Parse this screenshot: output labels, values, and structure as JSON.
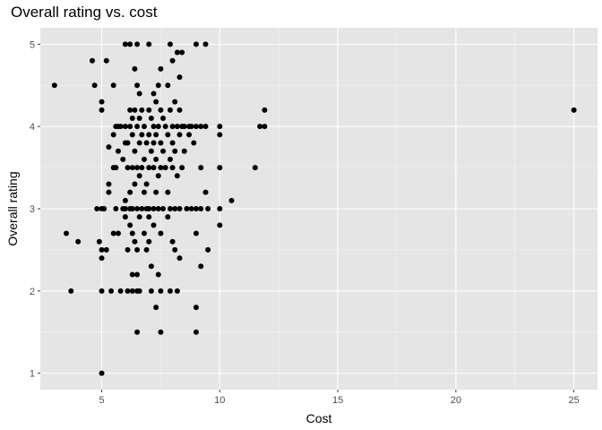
{
  "chart_data": {
    "type": "scatter",
    "title": "Overall rating vs. cost",
    "xlabel": "Cost",
    "ylabel": "Overall rating",
    "xlim": [
      2.4,
      26.0
    ],
    "ylim": [
      0.8,
      5.2
    ],
    "x_ticks": [
      5,
      10,
      15,
      20,
      25
    ],
    "y_ticks": [
      1,
      2,
      3,
      4,
      5
    ],
    "grid": true,
    "point_color": "#000000",
    "panel_background": "#e5e5e5",
    "points": [
      [
        3.0,
        4.5
      ],
      [
        3.5,
        2.7
      ],
      [
        3.7,
        2.0
      ],
      [
        4.0,
        2.6
      ],
      [
        4.6,
        4.8
      ],
      [
        4.7,
        4.5
      ],
      [
        4.8,
        3.0
      ],
      [
        4.9,
        2.6
      ],
      [
        5.0,
        4.3
      ],
      [
        5.0,
        4.2
      ],
      [
        5.0,
        3.0
      ],
      [
        5.0,
        2.5
      ],
      [
        5.0,
        2.4
      ],
      [
        5.0,
        2.0
      ],
      [
        5.0,
        1.0
      ],
      [
        5.1,
        3.0
      ],
      [
        5.2,
        4.8
      ],
      [
        5.2,
        2.5
      ],
      [
        5.3,
        3.75
      ],
      [
        5.3,
        3.3
      ],
      [
        5.3,
        3.2
      ],
      [
        5.4,
        2.0
      ],
      [
        5.5,
        4.5
      ],
      [
        5.5,
        3.9
      ],
      [
        5.5,
        3.5
      ],
      [
        5.5,
        2.7
      ],
      [
        5.6,
        4.0
      ],
      [
        5.6,
        3.5
      ],
      [
        5.6,
        3.0
      ],
      [
        5.7,
        4.0
      ],
      [
        5.7,
        3.7
      ],
      [
        5.7,
        2.7
      ],
      [
        5.8,
        4.0
      ],
      [
        5.8,
        2.0
      ],
      [
        5.9,
        3.6
      ],
      [
        5.9,
        3.0
      ],
      [
        6.0,
        5.0
      ],
      [
        6.0,
        4.0
      ],
      [
        6.0,
        3.8
      ],
      [
        6.0,
        3.1
      ],
      [
        6.0,
        3.0
      ],
      [
        6.0,
        2.9
      ],
      [
        6.1,
        3.8
      ],
      [
        6.1,
        3.5
      ],
      [
        6.1,
        2.5
      ],
      [
        6.1,
        2.0
      ],
      [
        6.2,
        5.0
      ],
      [
        6.2,
        4.2
      ],
      [
        6.2,
        4.0
      ],
      [
        6.2,
        3.2
      ],
      [
        6.2,
        3.0
      ],
      [
        6.2,
        2.8
      ],
      [
        6.3,
        4.1
      ],
      [
        6.3,
        3.9
      ],
      [
        6.3,
        3.5
      ],
      [
        6.3,
        3.0
      ],
      [
        6.3,
        2.7
      ],
      [
        6.3,
        2.2
      ],
      [
        6.3,
        2.0
      ],
      [
        6.4,
        4.7
      ],
      [
        6.4,
        4.2
      ],
      [
        6.4,
        3.7
      ],
      [
        6.4,
        3.3
      ],
      [
        6.4,
        2.6
      ],
      [
        6.5,
        5.0
      ],
      [
        6.5,
        4.5
      ],
      [
        6.5,
        4.0
      ],
      [
        6.5,
        3.5
      ],
      [
        6.5,
        3.0
      ],
      [
        6.5,
        2.5
      ],
      [
        6.5,
        2.2
      ],
      [
        6.5,
        2.0
      ],
      [
        6.5,
        1.5
      ],
      [
        6.6,
        4.4
      ],
      [
        6.6,
        4.1
      ],
      [
        6.6,
        3.8
      ],
      [
        6.6,
        3.4
      ],
      [
        6.6,
        2.9
      ],
      [
        6.6,
        2.0
      ],
      [
        6.7,
        4.2
      ],
      [
        6.7,
        3.9
      ],
      [
        6.7,
        3.5
      ],
      [
        6.7,
        3.0
      ],
      [
        6.8,
        4.0
      ],
      [
        6.8,
        3.6
      ],
      [
        6.8,
        3.2
      ],
      [
        6.8,
        2.7
      ],
      [
        6.9,
        3.8
      ],
      [
        6.9,
        3.3
      ],
      [
        6.9,
        3.0
      ],
      [
        6.9,
        2.5
      ],
      [
        7.0,
        5.0
      ],
      [
        7.0,
        4.2
      ],
      [
        7.0,
        3.9
      ],
      [
        7.0,
        3.5
      ],
      [
        7.0,
        3.0
      ],
      [
        7.0,
        2.9
      ],
      [
        7.0,
        2.6
      ],
      [
        7.1,
        4.1
      ],
      [
        7.1,
        3.7
      ],
      [
        7.1,
        2.3
      ],
      [
        7.1,
        2.0
      ],
      [
        7.2,
        4.4
      ],
      [
        7.2,
        4.0
      ],
      [
        7.2,
        3.8
      ],
      [
        7.2,
        3.5
      ],
      [
        7.2,
        3.0
      ],
      [
        7.2,
        2.8
      ],
      [
        7.3,
        4.3
      ],
      [
        7.3,
        3.9
      ],
      [
        7.3,
        3.6
      ],
      [
        7.3,
        3.2
      ],
      [
        7.3,
        1.8
      ],
      [
        7.4,
        4.5
      ],
      [
        7.4,
        4.0
      ],
      [
        7.4,
        3.4
      ],
      [
        7.4,
        3.0
      ],
      [
        7.4,
        2.2
      ],
      [
        7.5,
        4.7
      ],
      [
        7.5,
        4.2
      ],
      [
        7.5,
        3.8
      ],
      [
        7.5,
        3.5
      ],
      [
        7.5,
        2.7
      ],
      [
        7.5,
        2.0
      ],
      [
        7.5,
        1.5
      ],
      [
        7.6,
        4.1
      ],
      [
        7.6,
        3.7
      ],
      [
        7.6,
        3.0
      ],
      [
        7.7,
        4.0
      ],
      [
        7.7,
        3.5
      ],
      [
        7.8,
        4.5
      ],
      [
        7.8,
        3.9
      ],
      [
        7.8,
        3.2
      ],
      [
        7.8,
        2.9
      ],
      [
        7.9,
        5.0
      ],
      [
        7.9,
        4.2
      ],
      [
        7.9,
        3.6
      ],
      [
        7.9,
        3.0
      ],
      [
        7.9,
        2.0
      ],
      [
        8.0,
        4.8
      ],
      [
        8.0,
        4.0
      ],
      [
        8.0,
        3.8
      ],
      [
        8.0,
        3.5
      ],
      [
        8.0,
        2.6
      ],
      [
        8.1,
        4.3
      ],
      [
        8.1,
        3.7
      ],
      [
        8.1,
        3.0
      ],
      [
        8.1,
        2.5
      ],
      [
        8.2,
        4.9
      ],
      [
        8.2,
        4.0
      ],
      [
        8.2,
        3.4
      ],
      [
        8.2,
        2.0
      ],
      [
        8.3,
        4.6
      ],
      [
        8.3,
        4.2
      ],
      [
        8.3,
        3.9
      ],
      [
        8.3,
        3.0
      ],
      [
        8.3,
        2.4
      ],
      [
        8.4,
        4.9
      ],
      [
        8.4,
        4.0
      ],
      [
        8.4,
        3.5
      ],
      [
        8.5,
        4.0
      ],
      [
        8.5,
        3.7
      ],
      [
        8.6,
        3.0
      ],
      [
        8.7,
        4.0
      ],
      [
        8.7,
        3.9
      ],
      [
        8.8,
        4.0
      ],
      [
        8.8,
        3.0
      ],
      [
        8.9,
        3.8
      ],
      [
        9.0,
        5.0
      ],
      [
        9.0,
        4.0
      ],
      [
        9.0,
        3.0
      ],
      [
        9.0,
        2.7
      ],
      [
        9.0,
        1.8
      ],
      [
        9.0,
        1.5
      ],
      [
        9.2,
        4.0
      ],
      [
        9.2,
        3.5
      ],
      [
        9.2,
        3.0
      ],
      [
        9.2,
        2.3
      ],
      [
        9.4,
        5.0
      ],
      [
        9.4,
        4.0
      ],
      [
        9.4,
        3.2
      ],
      [
        9.5,
        3.0
      ],
      [
        9.5,
        2.5
      ],
      [
        10.0,
        4.0
      ],
      [
        10.0,
        3.9
      ],
      [
        10.0,
        3.5
      ],
      [
        10.0,
        3.0
      ],
      [
        10.0,
        2.8
      ],
      [
        10.5,
        3.1
      ],
      [
        11.5,
        3.5
      ],
      [
        11.7,
        4.0
      ],
      [
        11.9,
        4.2
      ],
      [
        11.9,
        4.0
      ],
      [
        25.0,
        4.2
      ]
    ]
  }
}
